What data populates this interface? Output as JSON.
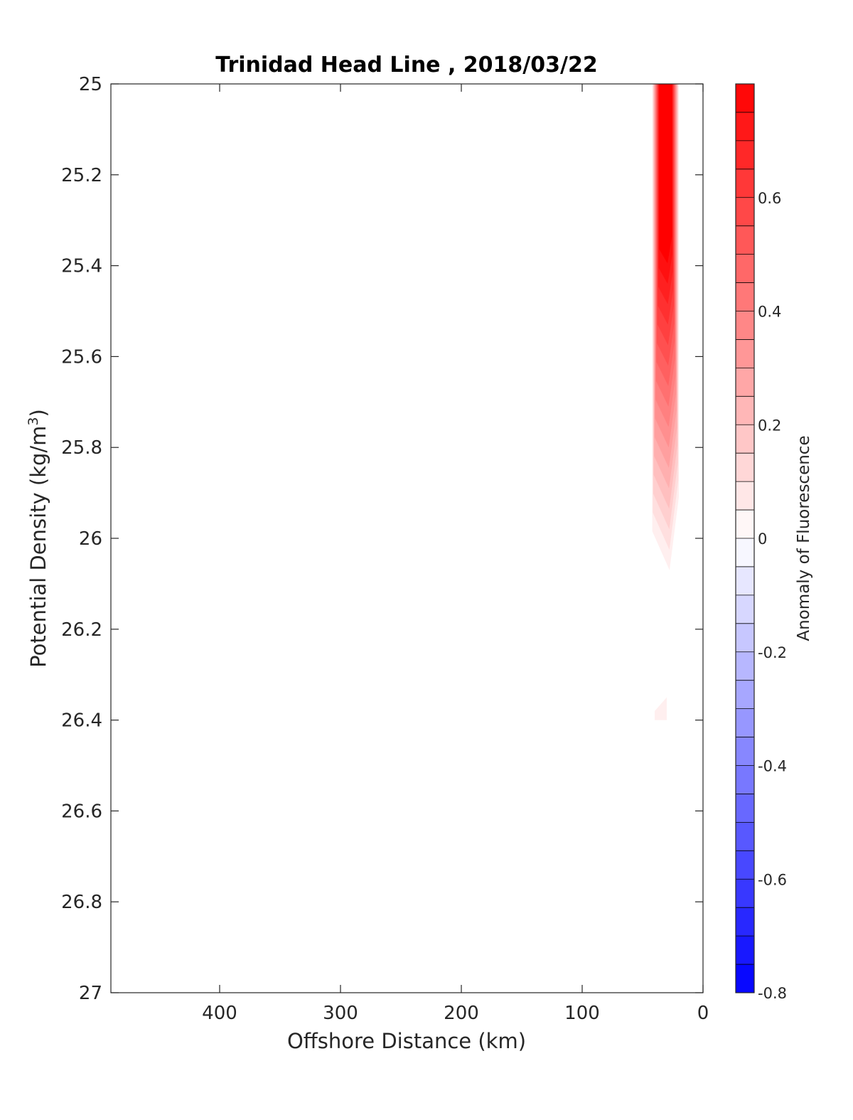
{
  "chart_data": {
    "type": "heatmap",
    "subtype": "filled-contour section",
    "title": "Trinidad Head Line , 2018/03/22",
    "xlabel": "Offshore Distance (km)",
    "ylabel_main": "Potential Density (kg/m",
    "ylabel_sup": "3",
    "ylabel_close": ")",
    "xlim": [
      490,
      0
    ],
    "x_reversed": true,
    "ylim": [
      25,
      27
    ],
    "y_reversed": true,
    "x_ticks": [
      400,
      300,
      200,
      100,
      0
    ],
    "x_tick_labels": [
      "400",
      "300",
      "200",
      "100",
      "0"
    ],
    "y_ticks": [
      25,
      25.2,
      25.4,
      25.6,
      25.8,
      26,
      26.2,
      26.4,
      26.6,
      26.8,
      27
    ],
    "y_tick_labels": [
      "25",
      "25.2",
      "25.4",
      "25.6",
      "25.8",
      "26",
      "26.2",
      "26.4",
      "26.6",
      "26.8",
      "27"
    ],
    "colorbar": {
      "label": "Anomaly of Fluorescence",
      "range": [
        -0.8,
        0.8
      ],
      "levels": 32,
      "ticks": [
        -0.8,
        -0.6,
        -0.4,
        -0.2,
        0,
        0.2,
        0.4,
        0.6
      ],
      "tick_labels": [
        "-0.8",
        "-0.6",
        "-0.4",
        "-0.2",
        "0",
        "0.2",
        "0.4",
        "0.6"
      ],
      "color_min": "#0000ff",
      "color_mid": "#ffffff",
      "color_max": "#ff0000"
    },
    "series": [
      {
        "description_points": [
          {
            "x": 40,
            "y": 25.0,
            "value": 0.35
          },
          {
            "x": 33,
            "y": 25.1,
            "value": 0.55
          },
          {
            "x": 30,
            "y": 25.25,
            "value": 0.72
          },
          {
            "x": 30,
            "y": 25.4,
            "value": 0.75
          },
          {
            "x": 30,
            "y": 25.55,
            "value": 0.55
          },
          {
            "x": 30,
            "y": 25.7,
            "value": 0.3
          },
          {
            "x": 30,
            "y": 25.85,
            "value": 0.12
          },
          {
            "x": 30,
            "y": 26.0,
            "value": 0.06
          },
          {
            "x": 35,
            "y": 26.38,
            "value": 0.05
          }
        ]
      }
    ],
    "anomaly_regions": [
      {
        "xs": [
          42,
          20
        ],
        "ys": [
          25.0,
          26.07
        ],
        "peak_value": 0.78,
        "peak_y": 25.35,
        "level_step": 0.05
      },
      {
        "xs": [
          40,
          30
        ],
        "ys": [
          26.35,
          26.4
        ],
        "peak_value": 0.05,
        "peak_y": 26.4,
        "level_step": 0.05
      }
    ]
  }
}
